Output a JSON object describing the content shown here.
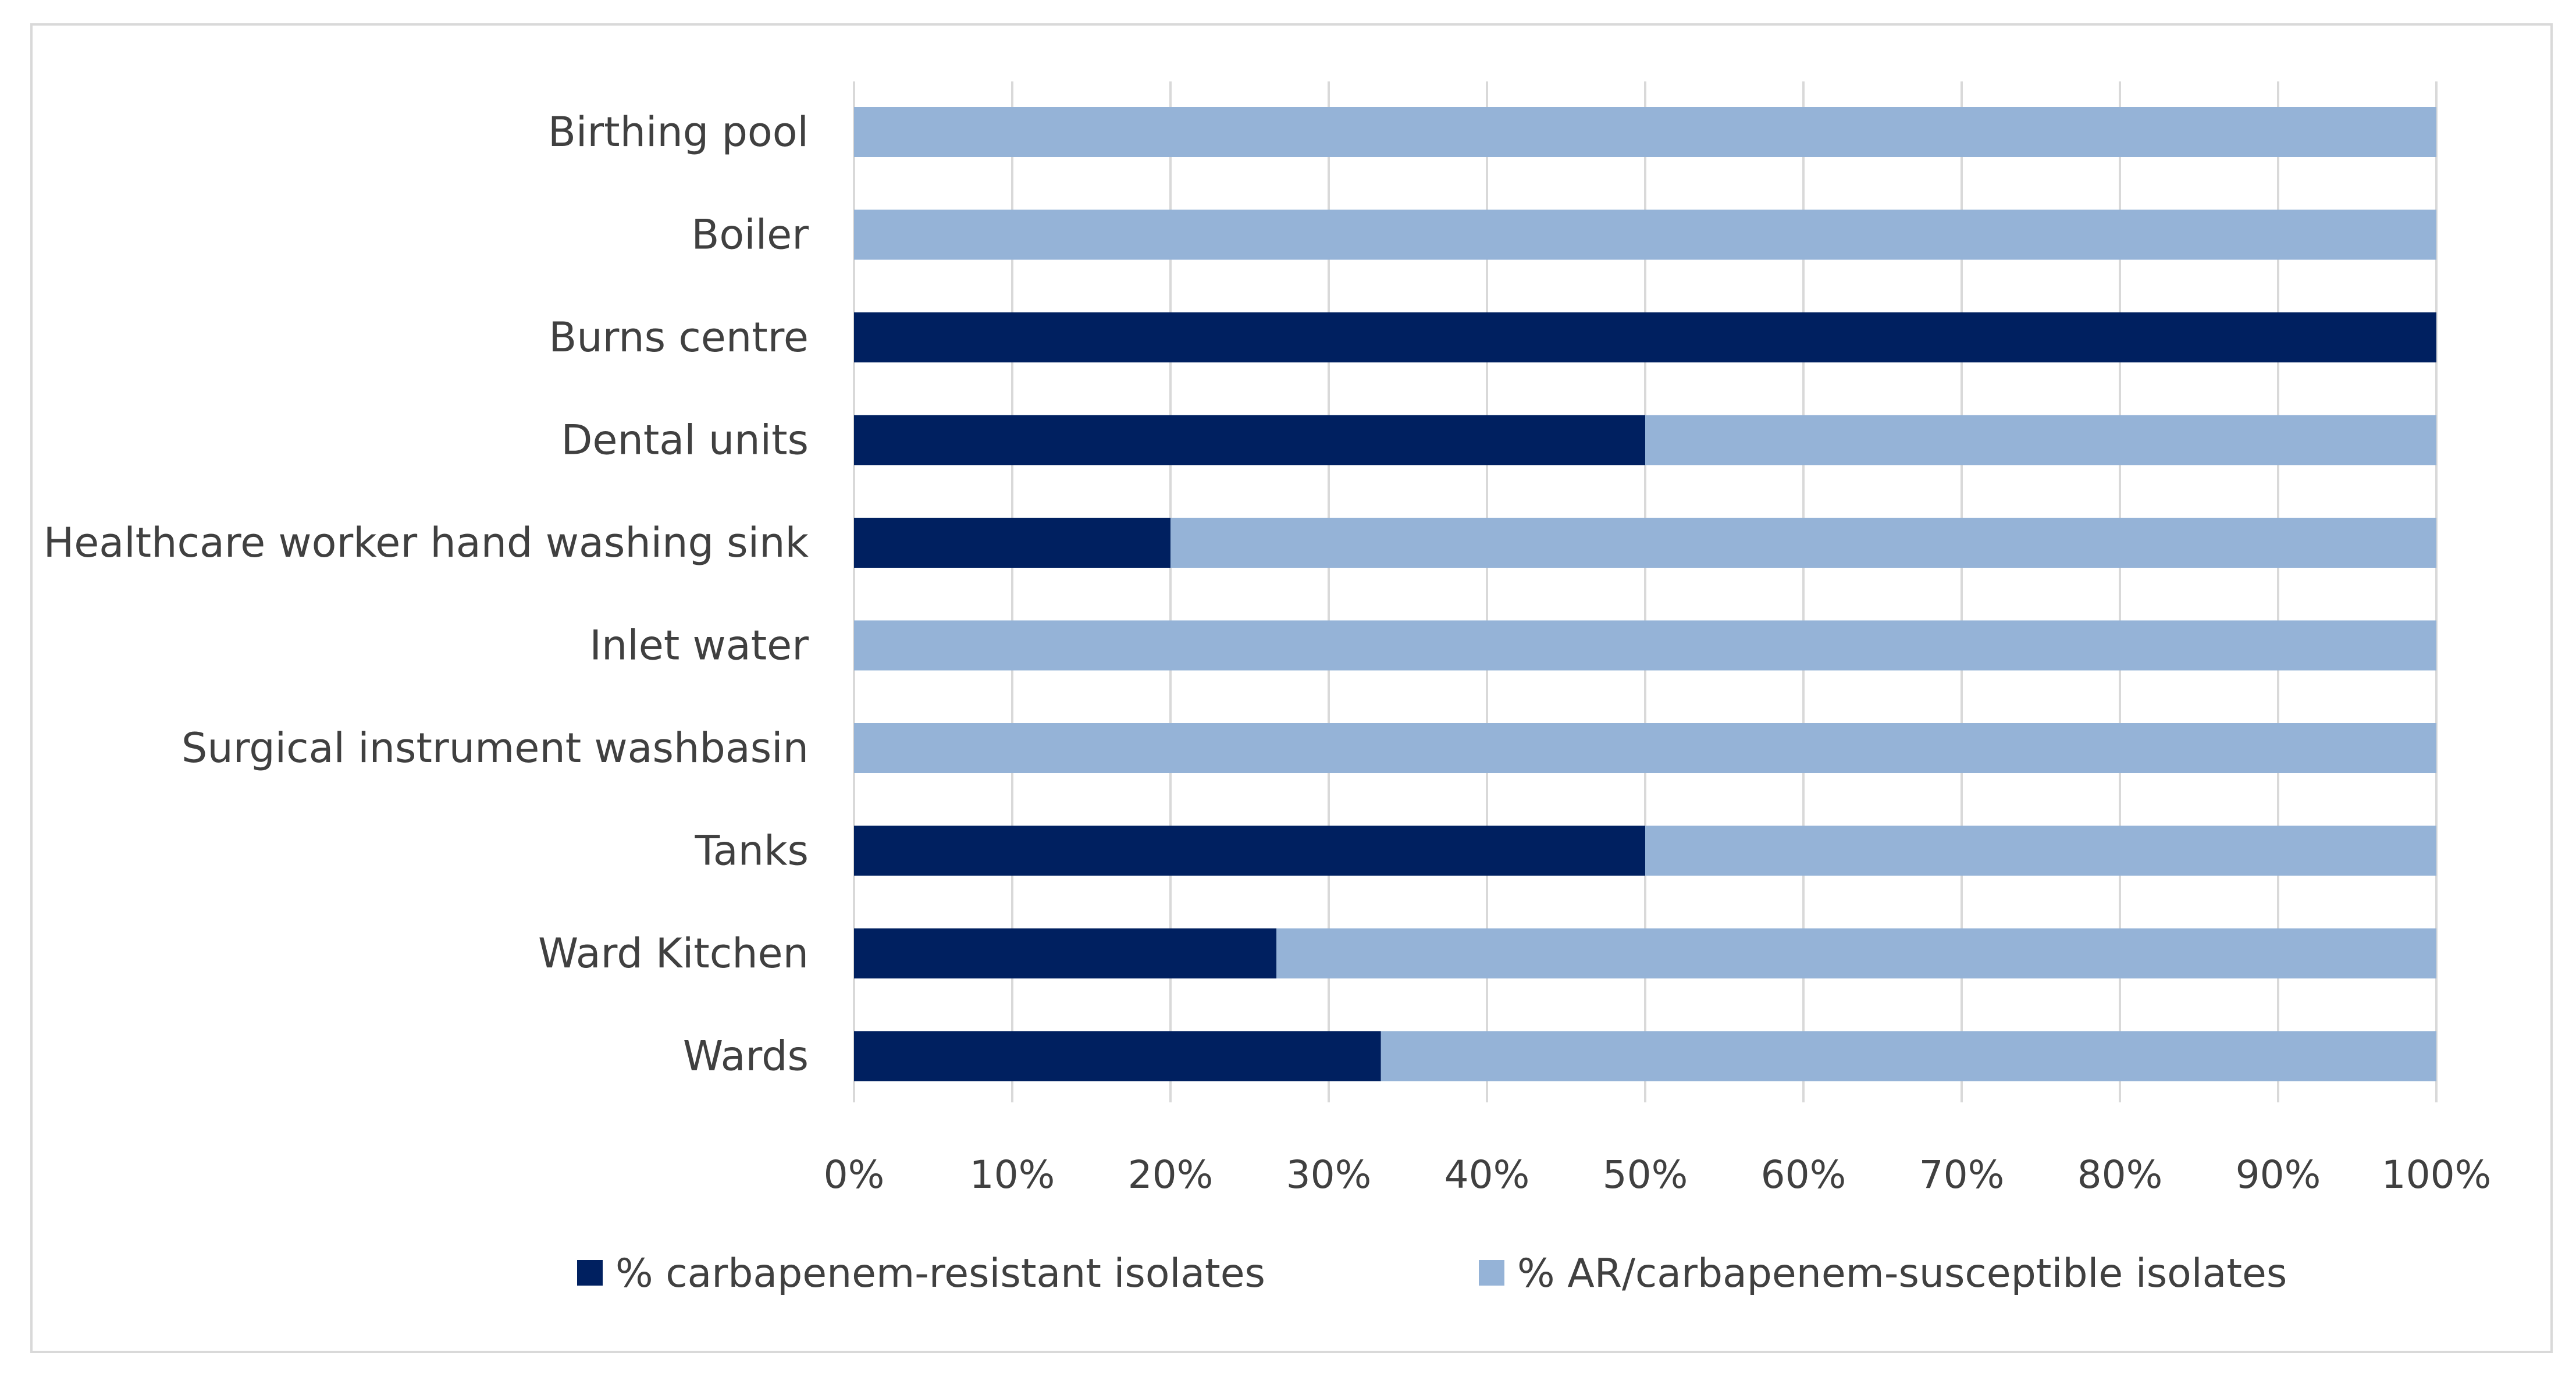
{
  "chart_data": {
    "type": "bar",
    "orientation": "horizontal",
    "stacked": "percent",
    "categories": [
      "Birthing pool",
      "Boiler",
      "Burns centre",
      "Dental units",
      "Healthcare worker hand washing sink",
      "Inlet water",
      "Surgical instrument washbasin",
      "Tanks",
      "Ward Kitchen",
      "Wards"
    ],
    "series": [
      {
        "name": "% carbapenem-resistant isolates",
        "color": "#002060",
        "values": [
          0,
          0,
          100,
          50,
          20,
          0,
          0,
          50,
          26.7,
          33.3
        ]
      },
      {
        "name": "% AR/carbapenem-susceptible isolates",
        "color": "#95B3D7",
        "values": [
          100,
          100,
          0,
          50,
          80,
          100,
          100,
          50,
          73.3,
          66.7
        ]
      }
    ],
    "x_ticks": [
      "0%",
      "10%",
      "20%",
      "30%",
      "40%",
      "50%",
      "60%",
      "70%",
      "80%",
      "90%",
      "100%"
    ],
    "xlim": [
      0,
      100
    ],
    "grid": "vertical",
    "legend_position": "bottom",
    "title": "",
    "xlabel": "",
    "ylabel": ""
  }
}
